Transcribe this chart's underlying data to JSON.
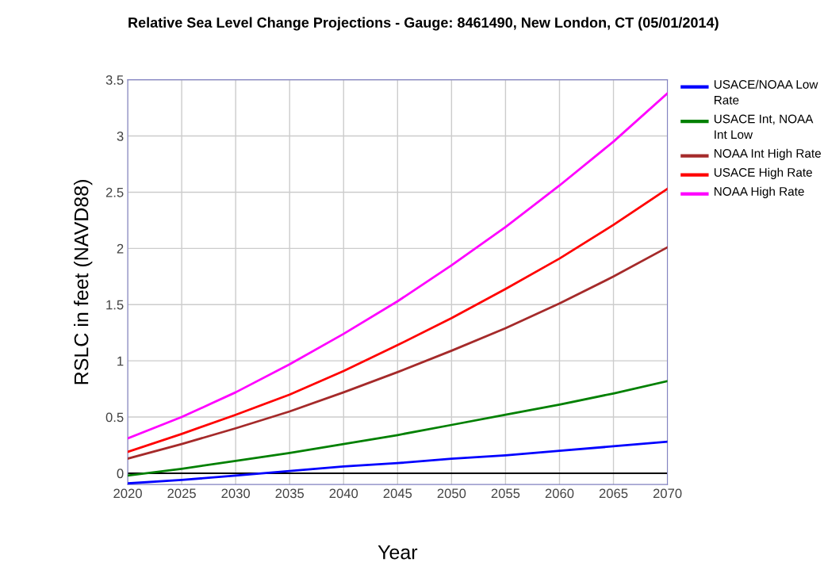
{
  "chart_data": {
    "type": "line",
    "title": "Relative Sea Level Change Projections - Gauge: 8461490, New London, CT (05/01/2014)",
    "xlabel": "Year",
    "ylabel": "RSLC in feet (NAVD88)",
    "x": [
      2020,
      2025,
      2030,
      2035,
      2040,
      2045,
      2050,
      2055,
      2060,
      2065,
      2070
    ],
    "series": [
      {
        "name": "USACE/NOAA Low Rate",
        "color": "#0000ff",
        "values": [
          -0.09,
          -0.06,
          -0.02,
          0.02,
          0.06,
          0.09,
          0.13,
          0.16,
          0.2,
          0.24,
          0.28
        ]
      },
      {
        "name": "USACE Int, NOAA Int Low",
        "color": "#008000",
        "values": [
          -0.02,
          0.04,
          0.11,
          0.18,
          0.26,
          0.34,
          0.43,
          0.52,
          0.61,
          0.71,
          0.82
        ]
      },
      {
        "name": "NOAA Int High Rate",
        "color": "#a52a2a",
        "values": [
          0.13,
          0.26,
          0.4,
          0.55,
          0.72,
          0.9,
          1.09,
          1.29,
          1.51,
          1.75,
          2.01
        ]
      },
      {
        "name": "USACE High Rate",
        "color": "#ff0000",
        "values": [
          0.19,
          0.35,
          0.52,
          0.7,
          0.91,
          1.14,
          1.38,
          1.64,
          1.91,
          2.21,
          2.53
        ]
      },
      {
        "name": "NOAA High Rate",
        "color": "#ff00ff",
        "values": [
          0.31,
          0.5,
          0.72,
          0.97,
          1.24,
          1.53,
          1.85,
          2.19,
          2.56,
          2.95,
          3.38
        ]
      }
    ],
    "xlim": [
      2020,
      2070
    ],
    "xticks": [
      2020,
      2025,
      2030,
      2035,
      2040,
      2045,
      2050,
      2055,
      2060,
      2065,
      2070
    ],
    "ylim": [
      -0.1,
      3.5
    ],
    "yticks": [
      0,
      0.5,
      1,
      1.5,
      2,
      2.5,
      3,
      3.5
    ],
    "ref_lines": [
      {
        "axis": "y",
        "value": 0,
        "color": "#000000"
      }
    ],
    "grid": true,
    "legend": "right",
    "marker": "none",
    "line_style": "solid"
  }
}
